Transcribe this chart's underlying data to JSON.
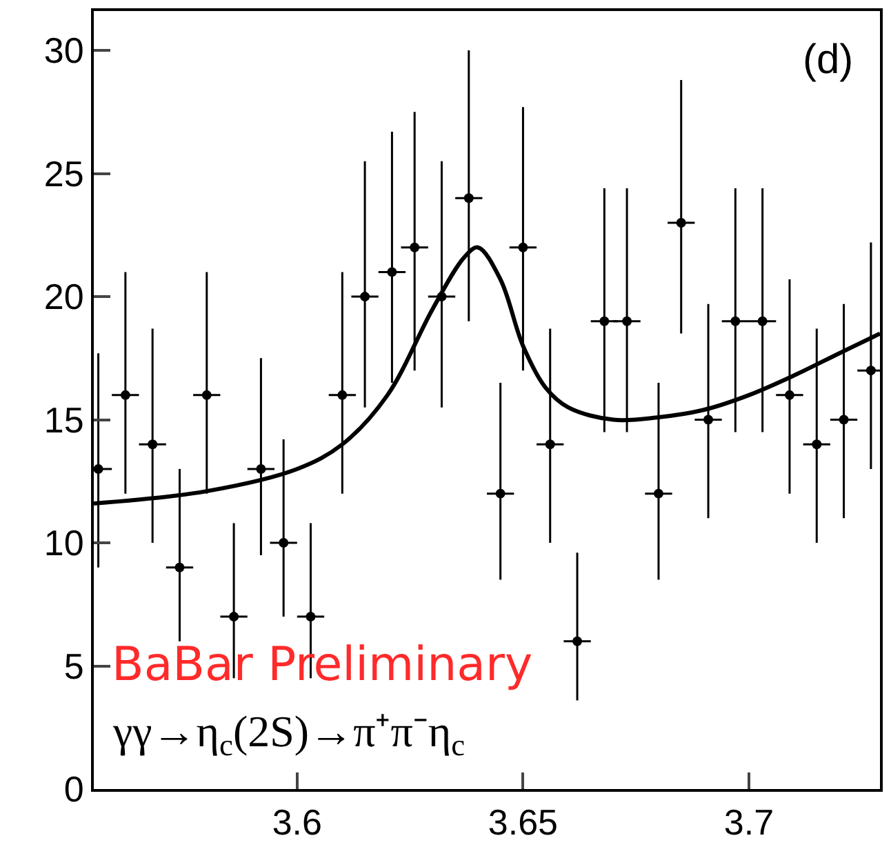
{
  "chart_data": {
    "type": "scatter",
    "xlim": [
      3.555,
      3.729
    ],
    "ylim": [
      0,
      31.6
    ],
    "xticks": [
      3.6,
      3.65,
      3.7
    ],
    "yticks": [
      0,
      5,
      10,
      15,
      20,
      25,
      30
    ],
    "legend": false,
    "annotations": [
      "(d)",
      "BaBar Preliminary",
      "γγ→η$_{c}$(2S)→π⁺π⁻η$_{c}$"
    ],
    "series": [
      {
        "marker": "circle",
        "color": "#000000",
        "x": [
          3.556,
          3.562,
          3.568,
          3.574,
          3.58,
          3.586,
          3.592,
          3.597,
          3.603,
          3.61,
          3.615,
          3.621,
          3.626,
          3.632,
          3.638,
          3.645,
          3.65,
          3.656,
          3.662,
          3.668,
          3.673,
          3.68,
          3.685,
          3.691,
          3.697,
          3.703,
          3.709,
          3.715,
          3.721,
          3.727
        ],
        "values": [
          13,
          16,
          14,
          9,
          16,
          7,
          13,
          10,
          7,
          16,
          20,
          21,
          22,
          20,
          24,
          12,
          22,
          14,
          6,
          19,
          19,
          12,
          23,
          15,
          19,
          19,
          16,
          14,
          15,
          17
        ],
        "errors": [
          [
            9,
            17.7
          ],
          [
            12,
            21
          ],
          [
            10,
            18.7
          ],
          [
            6,
            13
          ],
          [
            12,
            21
          ],
          [
            4.5,
            10.8
          ],
          [
            9.5,
            17.5
          ],
          [
            7,
            14.2
          ],
          [
            4.5,
            10.8
          ],
          [
            12,
            21
          ],
          [
            15.5,
            25.5
          ],
          [
            16.5,
            26.7
          ],
          [
            17,
            27.5
          ],
          [
            15.5,
            25.5
          ],
          [
            19,
            30
          ],
          [
            8.5,
            16.5
          ],
          [
            17,
            27.7
          ],
          [
            10,
            18.7
          ],
          [
            3.6,
            9.6
          ],
          [
            14.5,
            24.4
          ],
          [
            14.5,
            24.4
          ],
          [
            8.5,
            16.5
          ],
          [
            18.5,
            28.8
          ],
          [
            11,
            19.7
          ],
          [
            14.5,
            24.4
          ],
          [
            14.5,
            24.4
          ],
          [
            12,
            20.7
          ],
          [
            10,
            18.7
          ],
          [
            11,
            19.7
          ],
          [
            13,
            22.2
          ]
        ],
        "xerrors": [
          0.003,
          0.003,
          0.003,
          0.003,
          0.003,
          0.003,
          0.003,
          0.003,
          0.003,
          0.003,
          0.003,
          0.003,
          0.003,
          0.003,
          0.003,
          0.003,
          0.003,
          0.003,
          0.003,
          0.003,
          0.003,
          0.003,
          0.003,
          0.003,
          0.003,
          0.003,
          0.003,
          0.003,
          0.003,
          0.003
        ]
      },
      {
        "type": "line",
        "color": "#000000",
        "x": [
          3.555,
          3.58,
          3.6,
          3.61,
          3.62,
          3.63,
          3.637,
          3.64,
          3.645,
          3.65,
          3.655,
          3.66,
          3.67,
          3.68,
          3.69,
          3.7,
          3.71,
          3.72,
          3.729
        ],
        "values": [
          11.6,
          12.1,
          13,
          14,
          16,
          19.5,
          21.6,
          22,
          20.7,
          18,
          16.3,
          15.5,
          15,
          15.1,
          15.4,
          16,
          16.8,
          17.7,
          18.5
        ]
      }
    ]
  }
}
